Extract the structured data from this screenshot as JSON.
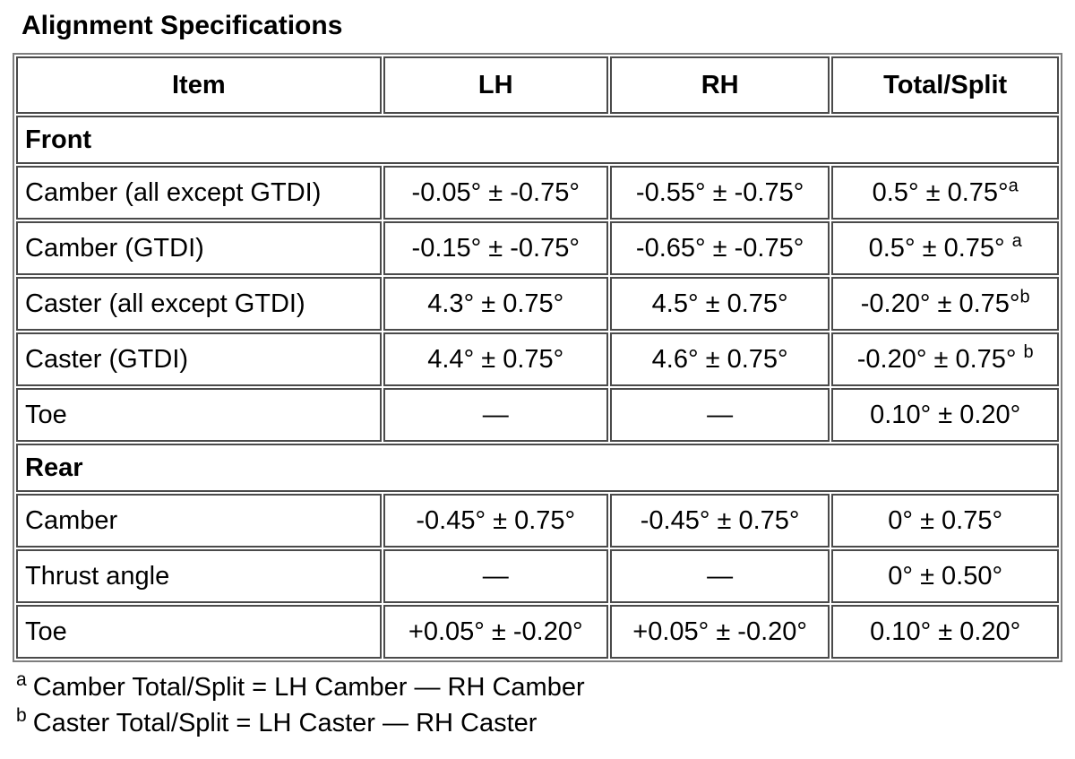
{
  "title": "Alignment Specifications",
  "table": {
    "columns": [
      "Item",
      "LH",
      "RH",
      "Total/Split"
    ],
    "sections": [
      {
        "label": "Front",
        "rows": [
          {
            "item": "Camber (all except GTDI)",
            "lh": "-0.05° ± -0.75°",
            "rh": "-0.55° ± -0.75°",
            "total": "0.5° ± 0.75°",
            "total_sup": "a",
            "sup_gap": false
          },
          {
            "item": "Camber (GTDI)",
            "lh": "-0.15° ± -0.75°",
            "rh": "-0.65° ± -0.75°",
            "total": "0.5° ± 0.75°",
            "total_sup": "a",
            "sup_gap": true
          },
          {
            "item": "Caster (all except GTDI)",
            "lh": "4.3° ± 0.75°",
            "rh": "4.5° ± 0.75°",
            "total": "-0.20° ± 0.75°",
            "total_sup": "b",
            "sup_gap": false
          },
          {
            "item": "Caster (GTDI)",
            "lh": "4.4° ± 0.75°",
            "rh": "4.6° ± 0.75°",
            "total": "-0.20° ± 0.75°",
            "total_sup": "b",
            "sup_gap": true
          },
          {
            "item": "Toe",
            "lh": "—",
            "rh": "—",
            "total": "0.10° ± 0.20°",
            "total_sup": "",
            "sup_gap": false
          }
        ]
      },
      {
        "label": "Rear",
        "rows": [
          {
            "item": "Camber",
            "lh": "-0.45° ± 0.75°",
            "rh": "-0.45° ± 0.75°",
            "total": "0° ± 0.75°",
            "total_sup": "",
            "sup_gap": false
          },
          {
            "item": "Thrust angle",
            "lh": "—",
            "rh": "—",
            "total": "0° ± 0.50°",
            "total_sup": "",
            "sup_gap": false
          },
          {
            "item": "Toe",
            "lh": "+0.05° ± -0.20°",
            "rh": "+0.05° ± -0.20°",
            "total": "0.10° ± 0.20°",
            "total_sup": "",
            "sup_gap": false
          }
        ]
      }
    ]
  },
  "footnotes": [
    {
      "marker": "a",
      "text": "Camber Total/Split = LH Camber — RH Camber"
    },
    {
      "marker": "b",
      "text": "Caster Total/Split = LH Caster — RH Caster"
    }
  ]
}
